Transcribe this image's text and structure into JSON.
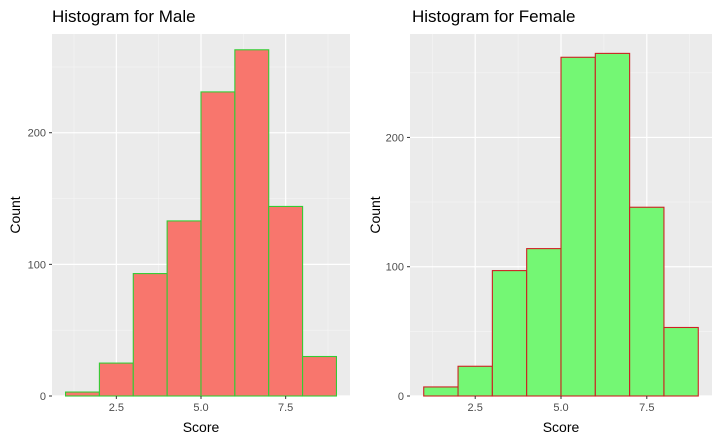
{
  "chart_data": [
    {
      "type": "bar",
      "title": "Histogram for Male",
      "xlabel": "Score",
      "ylabel": "Count",
      "xlim": [
        0.6,
        9.4
      ],
      "ylim": [
        0,
        275
      ],
      "xticks": [
        "2.5",
        "5.0",
        "7.5"
      ],
      "xtick_values": [
        2.5,
        5.0,
        7.5
      ],
      "yticks": [
        "0",
        "100",
        "200"
      ],
      "ytick_values": [
        0,
        100,
        200
      ],
      "bin_edges": [
        1,
        2,
        3,
        4,
        5,
        6,
        7,
        8,
        9
      ],
      "values": [
        3,
        25,
        93,
        133,
        231,
        263,
        144,
        30
      ],
      "fill_color": "#f8766d",
      "outline_color": "#33cc33",
      "panel_color": "#ebebeb",
      "grid": true
    },
    {
      "type": "bar",
      "title": "Histogram for Female",
      "xlabel": "Score",
      "ylabel": "Count",
      "xlim": [
        0.6,
        9.4
      ],
      "ylim": [
        0,
        280
      ],
      "xticks": [
        "2.5",
        "5.0",
        "7.5"
      ],
      "xtick_values": [
        2.5,
        5.0,
        7.5
      ],
      "yticks": [
        "0",
        "100",
        "200"
      ],
      "ytick_values": [
        0,
        100,
        200
      ],
      "bin_edges": [
        1,
        2,
        3,
        4,
        5,
        6,
        7,
        8,
        9
      ],
      "values": [
        7,
        23,
        97,
        114,
        262,
        265,
        146,
        53
      ],
      "fill_color": "#74f774",
      "outline_color": "#cc2222",
      "panel_color": "#ebebeb",
      "grid": true
    }
  ]
}
